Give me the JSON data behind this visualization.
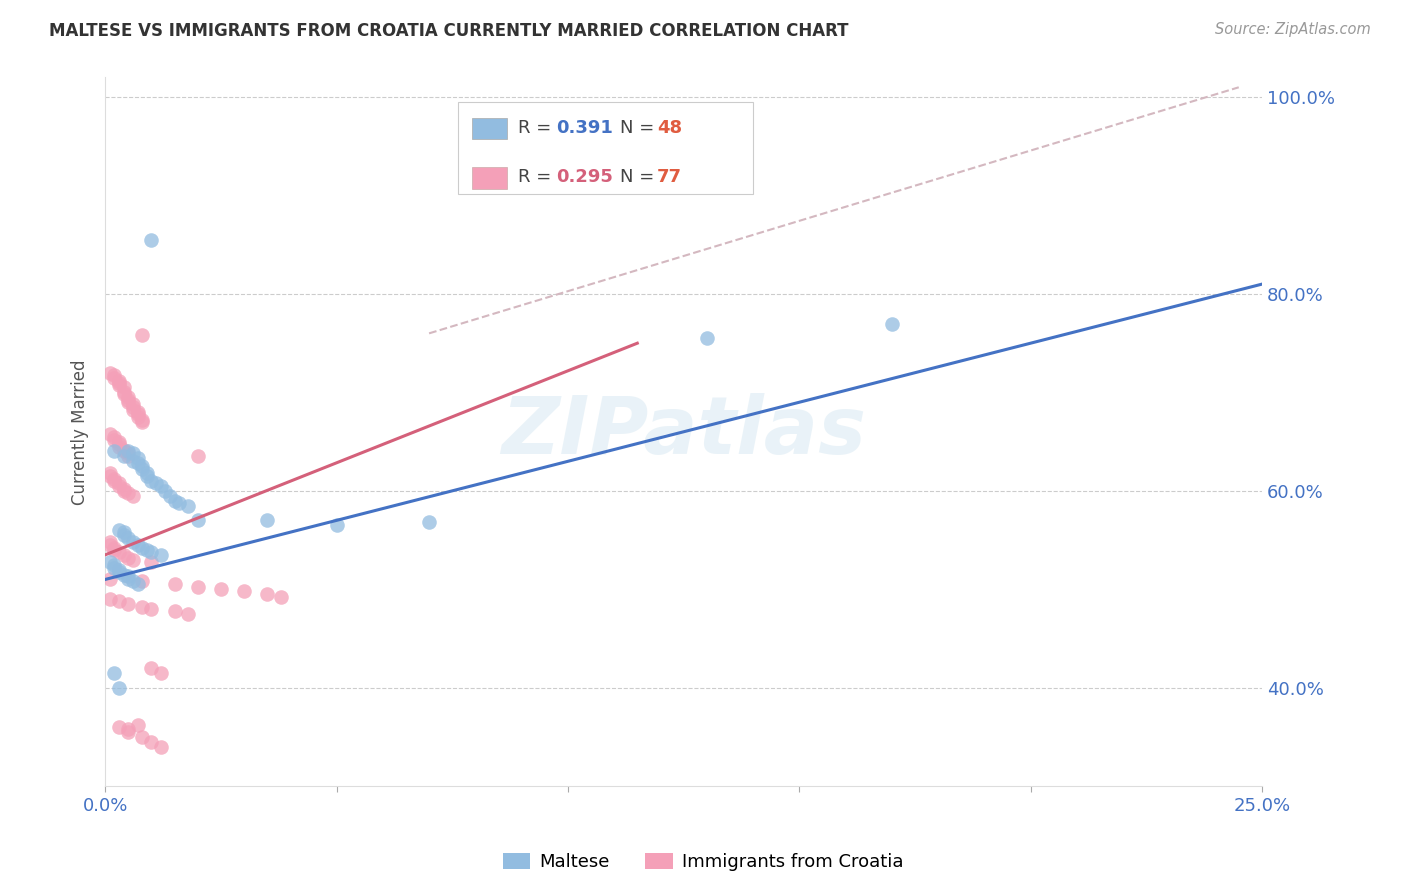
{
  "title": "MALTESE VS IMMIGRANTS FROM CROATIA CURRENTLY MARRIED CORRELATION CHART",
  "source": "Source: ZipAtlas.com",
  "ylabel_label": "Currently Married",
  "x_min": 0.0,
  "x_max": 0.25,
  "y_min": 0.3,
  "y_max": 1.02,
  "x_ticks": [
    0.0,
    0.05,
    0.1,
    0.15,
    0.2,
    0.25
  ],
  "x_tick_labels": [
    "0.0%",
    "",
    "",
    "",
    "",
    "25.0%"
  ],
  "y_ticks": [
    0.4,
    0.6,
    0.8,
    1.0
  ],
  "y_tick_labels": [
    "40.0%",
    "60.0%",
    "80.0%",
    "100.0%"
  ],
  "color_blue": "#92bce0",
  "color_pink": "#f4a0b8",
  "line_color_blue": "#4472c4",
  "line_color_pink": "#d4607a",
  "dashed_line_color": "#d4b8c0",
  "watermark": "ZIPatlas",
  "blue_scatter_x": [
    0.01,
    0.002,
    0.004,
    0.005,
    0.006,
    0.006,
    0.007,
    0.007,
    0.008,
    0.008,
    0.009,
    0.009,
    0.01,
    0.011,
    0.012,
    0.013,
    0.014,
    0.015,
    0.016,
    0.018,
    0.003,
    0.004,
    0.004,
    0.005,
    0.006,
    0.007,
    0.008,
    0.009,
    0.01,
    0.012,
    0.001,
    0.002,
    0.002,
    0.003,
    0.003,
    0.004,
    0.005,
    0.005,
    0.006,
    0.007,
    0.13,
    0.17,
    0.002,
    0.003,
    0.02,
    0.035,
    0.05,
    0.07
  ],
  "blue_scatter_y": [
    0.855,
    0.64,
    0.635,
    0.64,
    0.638,
    0.63,
    0.628,
    0.633,
    0.625,
    0.622,
    0.618,
    0.615,
    0.61,
    0.608,
    0.605,
    0.6,
    0.595,
    0.59,
    0.588,
    0.585,
    0.56,
    0.558,
    0.555,
    0.552,
    0.548,
    0.545,
    0.542,
    0.54,
    0.538,
    0.535,
    0.528,
    0.525,
    0.522,
    0.52,
    0.518,
    0.515,
    0.513,
    0.51,
    0.508,
    0.505,
    0.755,
    0.77,
    0.415,
    0.4,
    0.57,
    0.57,
    0.565,
    0.568
  ],
  "pink_scatter_x": [
    0.001,
    0.002,
    0.002,
    0.003,
    0.003,
    0.003,
    0.004,
    0.004,
    0.004,
    0.005,
    0.005,
    0.005,
    0.006,
    0.006,
    0.006,
    0.007,
    0.007,
    0.007,
    0.008,
    0.008,
    0.001,
    0.002,
    0.002,
    0.003,
    0.003,
    0.003,
    0.004,
    0.004,
    0.005,
    0.005,
    0.001,
    0.001,
    0.002,
    0.002,
    0.003,
    0.003,
    0.004,
    0.004,
    0.005,
    0.006,
    0.001,
    0.001,
    0.002,
    0.002,
    0.003,
    0.004,
    0.005,
    0.006,
    0.01,
    0.02,
    0.001,
    0.008,
    0.015,
    0.02,
    0.025,
    0.03,
    0.035,
    0.038,
    0.001,
    0.003,
    0.005,
    0.008,
    0.01,
    0.015,
    0.018,
    0.008,
    0.01,
    0.012,
    0.003,
    0.005,
    0.008,
    0.01,
    0.012,
    0.005,
    0.007
  ],
  "pink_scatter_y": [
    0.72,
    0.718,
    0.715,
    0.712,
    0.71,
    0.708,
    0.705,
    0.7,
    0.698,
    0.695,
    0.692,
    0.69,
    0.688,
    0.685,
    0.682,
    0.68,
    0.678,
    0.675,
    0.672,
    0.67,
    0.658,
    0.655,
    0.652,
    0.65,
    0.648,
    0.645,
    0.642,
    0.64,
    0.638,
    0.635,
    0.618,
    0.615,
    0.612,
    0.61,
    0.608,
    0.605,
    0.602,
    0.6,
    0.598,
    0.595,
    0.548,
    0.545,
    0.542,
    0.54,
    0.538,
    0.535,
    0.532,
    0.53,
    0.528,
    0.635,
    0.51,
    0.508,
    0.505,
    0.502,
    0.5,
    0.498,
    0.495,
    0.492,
    0.49,
    0.488,
    0.485,
    0.482,
    0.48,
    0.478,
    0.475,
    0.758,
    0.42,
    0.415,
    0.36,
    0.355,
    0.35,
    0.345,
    0.34,
    0.358,
    0.362
  ],
  "blue_line_x": [
    0.0,
    0.25
  ],
  "blue_line_y": [
    0.51,
    0.81
  ],
  "pink_line_x": [
    0.0,
    0.115
  ],
  "pink_line_y": [
    0.535,
    0.75
  ],
  "dashed_line_x": [
    0.07,
    0.245
  ],
  "dashed_line_y": [
    0.76,
    1.01
  ]
}
